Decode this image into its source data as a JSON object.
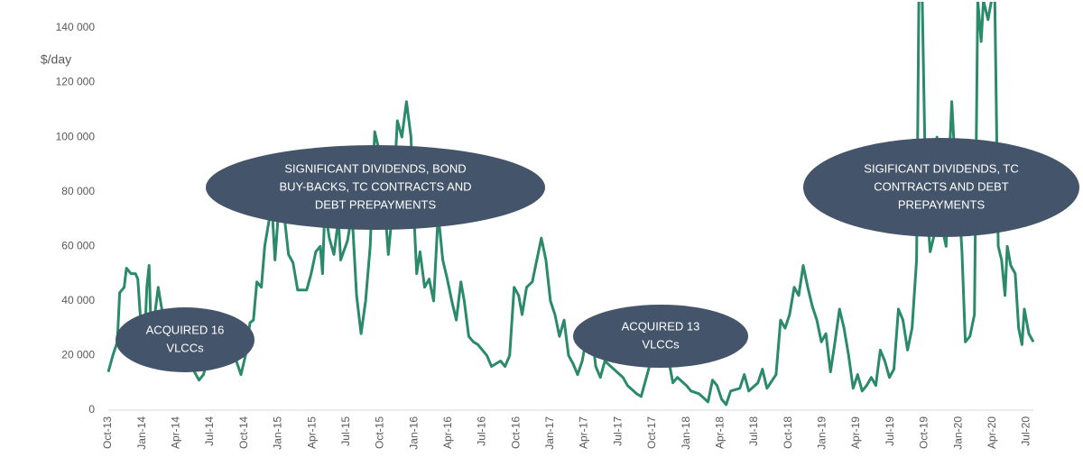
{
  "chart_data": {
    "type": "line",
    "y_label": "$/day",
    "color": "#2a8a6a",
    "grid": false,
    "xlim": [
      0,
      81.6
    ],
    "ylim": [
      0,
      150000
    ],
    "yticks": [
      0,
      {
        "value": 20000,
        "label": "20 000"
      },
      {
        "value": 40000,
        "label": "40 000"
      },
      {
        "value": 60000,
        "label": "60 000"
      },
      {
        "value": 80000,
        "label": "80 000"
      },
      {
        "value": 100000,
        "label": "100 000"
      },
      {
        "value": 120000,
        "label": "120 000"
      },
      {
        "value": 140000,
        "label": "140 000"
      }
    ],
    "xticks": [
      {
        "value": 0,
        "label": "Oct-13"
      },
      {
        "value": 3,
        "label": "Jan-14"
      },
      {
        "value": 6,
        "label": "Apr-14"
      },
      {
        "value": 9,
        "label": "Jul-14"
      },
      {
        "value": 12,
        "label": "Oct-14"
      },
      {
        "value": 15,
        "label": "Jan-15"
      },
      {
        "value": 18,
        "label": "Apr-15"
      },
      {
        "value": 21,
        "label": "Jul-15"
      },
      {
        "value": 24,
        "label": "Oct-15"
      },
      {
        "value": 27,
        "label": "Jan-16"
      },
      {
        "value": 30,
        "label": "Apr-16"
      },
      {
        "value": 33,
        "label": "Jul-16"
      },
      {
        "value": 36,
        "label": "Oct-16"
      },
      {
        "value": 39,
        "label": "Jan-17"
      },
      {
        "value": 42,
        "label": "Apr-17"
      },
      {
        "value": 45,
        "label": "Jul-17"
      },
      {
        "value": 48,
        "label": "Oct-17"
      },
      {
        "value": 51,
        "label": "Jan-18"
      },
      {
        "value": 54,
        "label": "Apr-18"
      },
      {
        "value": 57,
        "label": "Jul-18"
      },
      {
        "value": 60,
        "label": "Oct-18"
      },
      {
        "value": 63,
        "label": "Jan-19"
      },
      {
        "value": 66,
        "label": "Apr-19"
      },
      {
        "value": 69,
        "label": "Jul-19"
      },
      {
        "value": 72,
        "label": "Oct-19"
      },
      {
        "value": 75,
        "label": "Jan-20"
      },
      {
        "value": 78,
        "label": "Apr-20"
      },
      {
        "value": 81,
        "label": "Jul-20"
      }
    ],
    "x": [
      0,
      0.4,
      0.8,
      1.0,
      1.4,
      1.6,
      2.0,
      2.4,
      2.6,
      2.9,
      3.2,
      3.4,
      3.6,
      3.8,
      4.4,
      4.8,
      5.2,
      5.6,
      6.0,
      6.4,
      6.8,
      7.0,
      7.3,
      7.6,
      8.0,
      8.4,
      8.8,
      9.2,
      10.2,
      10.5,
      10.9,
      11.3,
      11.7,
      12.1,
      12.5,
      12.8,
      13.1,
      13.5,
      13.8,
      14.2,
      14.5,
      14.7,
      15.0,
      15.5,
      15.9,
      16.3,
      16.7,
      17.5,
      17.9,
      18.3,
      18.7,
      18.9,
      19.1,
      19.5,
      19.9,
      20.3,
      20.5,
      21.1,
      21.5,
      21.9,
      22.3,
      22.7,
      23.1,
      23.5,
      23.9,
      24.3,
      24.7,
      25.1,
      25.5,
      25.9,
      26.3,
      26.7,
      26.9,
      27.2,
      27.5,
      27.9,
      28.3,
      28.7,
      29.1,
      29.5,
      29.9,
      30.3,
      30.7,
      31.1,
      31.4,
      31.8,
      32.2,
      32.6,
      33.4,
      33.8,
      34.6,
      35.0,
      35.4,
      35.8,
      36.2,
      36.5,
      36.9,
      37.4,
      37.8,
      38.2,
      38.6,
      39.0,
      39.4,
      39.8,
      40.2,
      40.6,
      41.0,
      41.4,
      41.8,
      42.2,
      42.6,
      43.0,
      43.4,
      43.8,
      44.6,
      45.4,
      45.8,
      46.6,
      47.0,
      47.4,
      47.8,
      48.4,
      49.0,
      49.4,
      49.8,
      50.2,
      51.0,
      51.4,
      52.1,
      52.9,
      53.3,
      53.7,
      54.1,
      54.5,
      54.9,
      55.7,
      56.1,
      56.5,
      57.3,
      57.7,
      58.1,
      58.9,
      59.3,
      59.7,
      60.1,
      60.5,
      60.9,
      61.3,
      61.7,
      62.1,
      62.5,
      62.9,
      63.3,
      63.7,
      64.1,
      64.5,
      64.9,
      65.3,
      65.7,
      66.1,
      66.5,
      66.9,
      67.3,
      67.7,
      68.1,
      68.5,
      68.9,
      69.3,
      69.7,
      70.1,
      70.5,
      70.9,
      71.3,
      71.5,
      71.8,
      72.1,
      72.5,
      72.9,
      73.1,
      73.4,
      73.9,
      74.2,
      74.4,
      74.7,
      75.0,
      75.3,
      75.6,
      76.0,
      76.4,
      76.7,
      77.0,
      77.2,
      77.6,
      77.9,
      78.2,
      78.5,
      78.8,
      79.1,
      79.3,
      79.6,
      80.0,
      80.3,
      80.6,
      80.8,
      81.2,
      81.6
    ],
    "values": [
      14000,
      20000,
      25000,
      43000,
      45000,
      52000,
      50000,
      50000,
      48000,
      30000,
      25000,
      45000,
      53000,
      25000,
      45000,
      35000,
      25000,
      17000,
      16000,
      28000,
      36000,
      30000,
      22000,
      14000,
      11000,
      13000,
      20000,
      25000,
      35000,
      30000,
      22000,
      18000,
      13000,
      20000,
      32000,
      33000,
      47000,
      45000,
      60000,
      70000,
      70000,
      55000,
      72000,
      72000,
      57000,
      54000,
      44000,
      44000,
      50000,
      58000,
      60000,
      50000,
      74000,
      63000,
      57000,
      70000,
      55000,
      62000,
      72000,
      42000,
      28000,
      40000,
      60000,
      102000,
      95000,
      80000,
      57000,
      75000,
      106000,
      100000,
      113000,
      100000,
      77000,
      50000,
      58000,
      45000,
      48000,
      40000,
      72000,
      55000,
      48000,
      40000,
      33000,
      47000,
      40000,
      27000,
      25000,
      24000,
      20000,
      16000,
      18000,
      16000,
      20000,
      45000,
      42000,
      35000,
      45000,
      47000,
      55000,
      63000,
      55000,
      40000,
      35000,
      27000,
      33000,
      20000,
      17000,
      13000,
      18000,
      27000,
      30000,
      16000,
      12000,
      18000,
      15000,
      12000,
      9000,
      6000,
      5000,
      11000,
      17000,
      25000,
      22000,
      19000,
      10000,
      12000,
      9000,
      7000,
      6000,
      3000,
      11000,
      9000,
      4000,
      2000,
      7000,
      8000,
      13000,
      7000,
      10000,
      15000,
      8000,
      13000,
      33000,
      30000,
      35000,
      45000,
      42000,
      53000,
      45000,
      38000,
      33000,
      25000,
      28000,
      14000,
      25000,
      37000,
      30000,
      20000,
      8000,
      13000,
      7000,
      9000,
      12000,
      9000,
      22000,
      18000,
      12000,
      15000,
      37000,
      33000,
      22000,
      30000,
      55000,
      150000,
      150000,
      80000,
      58000,
      65000,
      100000,
      70000,
      60000,
      93000,
      113000,
      90000,
      80000,
      58000,
      25000,
      27000,
      35000,
      150000,
      135000,
      150000,
      143000,
      150000,
      150000,
      60000,
      55000,
      42000,
      60000,
      53000,
      50000,
      30000,
      24000,
      37000,
      28000,
      25000
    ],
    "annotations": [
      {
        "lines": [
          "ACQUIRED 16",
          "VLCCs"
        ]
      },
      {
        "lines": [
          "SIGNIFICANT DIVIDENDS, BOND",
          "BUY-BACKS, TC CONTRACTS AND",
          "DEBT PREPAYMENTS"
        ]
      },
      {
        "lines": [
          "ACQUIRED 13",
          "VLCCs"
        ]
      },
      {
        "lines": [
          "SIGIFICANT DIVIDENDS, TC",
          "CONTRACTS AND DEBT",
          "PREPAYMENTS"
        ]
      }
    ]
  }
}
